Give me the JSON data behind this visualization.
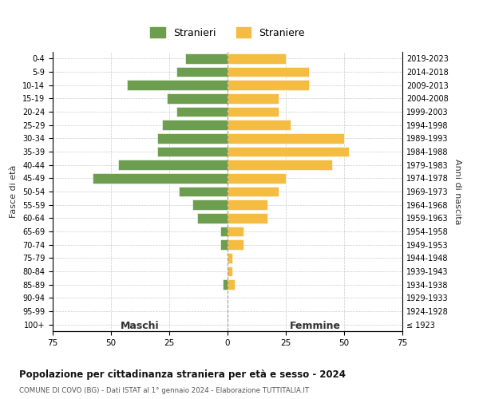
{
  "age_groups": [
    "0-4",
    "5-9",
    "10-14",
    "15-19",
    "20-24",
    "25-29",
    "30-34",
    "35-39",
    "40-44",
    "45-49",
    "50-54",
    "55-59",
    "60-64",
    "65-69",
    "70-74",
    "75-79",
    "80-84",
    "85-89",
    "90-94",
    "95-99",
    "100+"
  ],
  "birth_years": [
    "2019-2023",
    "2014-2018",
    "2009-2013",
    "2004-2008",
    "1999-2003",
    "1994-1998",
    "1989-1993",
    "1984-1988",
    "1979-1983",
    "1974-1978",
    "1969-1973",
    "1964-1968",
    "1959-1963",
    "1954-1958",
    "1949-1953",
    "1944-1948",
    "1939-1943",
    "1934-1938",
    "1929-1933",
    "1924-1928",
    "≤ 1923"
  ],
  "males": [
    18,
    22,
    43,
    26,
    22,
    28,
    30,
    30,
    47,
    58,
    21,
    15,
    13,
    3,
    3,
    0,
    0,
    2,
    0,
    0,
    0
  ],
  "females": [
    25,
    35,
    35,
    22,
    22,
    27,
    50,
    52,
    45,
    25,
    22,
    17,
    17,
    7,
    7,
    2,
    2,
    3,
    0,
    0,
    0
  ],
  "male_color": "#6d9e4f",
  "female_color": "#f5bc42",
  "background_color": "#ffffff",
  "grid_color": "#cccccc",
  "title": "Popolazione per cittadinanza straniera per età e sesso - 2024",
  "subtitle": "COMUNE DI COVO (BG) - Dati ISTAT al 1° gennaio 2024 - Elaborazione TUTTITALIA.IT",
  "xlabel_left": "Maschi",
  "xlabel_right": "Femmine",
  "ylabel_left": "Fasce di età",
  "ylabel_right": "Anni di nascita",
  "legend_stranieri": "Stranieri",
  "legend_straniere": "Straniere",
  "xlim": 75
}
